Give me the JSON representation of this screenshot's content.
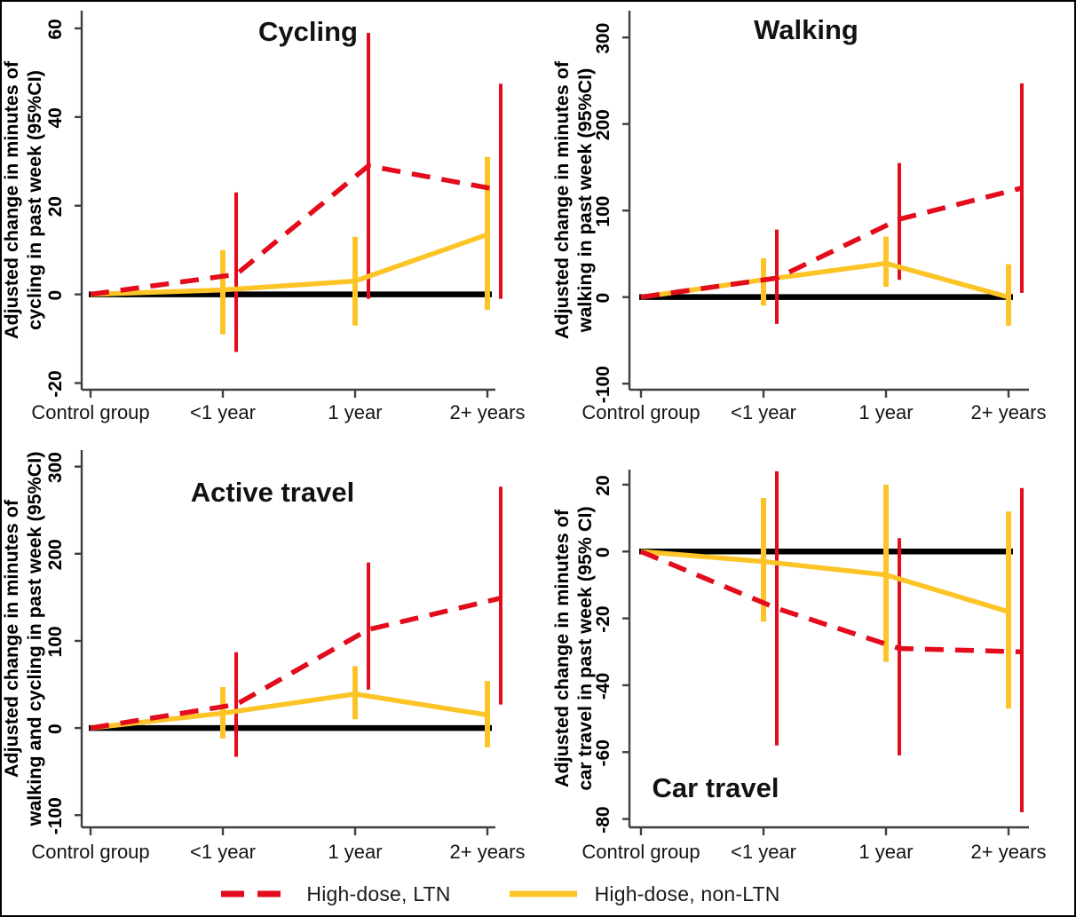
{
  "legend": {
    "items": [
      {
        "label": "High-dose, LTN",
        "color": "#e30b1c",
        "style": "dashed"
      },
      {
        "label": "High-dose, non-LTN",
        "color": "#fdc428",
        "style": "solid"
      }
    ]
  },
  "chart_data": [
    {
      "type": "line",
      "title": "Cycling",
      "ylabel": "Adjusted change in minutes of cycling in past week (95%CI)",
      "ylabel_lines": [
        "Adjusted change in minutes of",
        "cycling in past week (95%CI)"
      ],
      "categories": [
        "Control group",
        "<1 year",
        "1 year",
        "2+ years"
      ],
      "yticks": [
        -20,
        0,
        20,
        40,
        60
      ],
      "ylim": [
        -21.5,
        64
      ],
      "baseline": 0,
      "series": [
        {
          "name": "High-dose, LTN",
          "color": "#e30b1c",
          "dashed": true,
          "values": [
            0,
            4.5,
            29,
            23.5
          ],
          "ci_low": [
            null,
            -13,
            -1,
            -1
          ],
          "ci_high": [
            null,
            23,
            59,
            47.5
          ]
        },
        {
          "name": "High-dose, non-LTN",
          "color": "#fdc428",
          "dashed": false,
          "values": [
            0,
            1,
            3,
            13.5
          ],
          "ci_low": [
            null,
            -9,
            -7,
            -3.5
          ],
          "ci_high": [
            null,
            10,
            13,
            31
          ]
        }
      ]
    },
    {
      "type": "line",
      "title": "Walking",
      "ylabel": "Adjusted change in minutes of walking in past week (95%CI)",
      "ylabel_lines": [
        "Adjusted change in minutes of",
        "walking in past week (95%CI)"
      ],
      "categories": [
        "Control group",
        "<1 year",
        "1 year",
        "2+ years"
      ],
      "yticks": [
        -100,
        0,
        100,
        200,
        300
      ],
      "ylim": [
        -107,
        331
      ],
      "baseline": 0,
      "series": [
        {
          "name": "High-dose, LTN",
          "color": "#e30b1c",
          "dashed": true,
          "values": [
            0,
            22,
            90,
            126
          ],
          "ci_low": [
            null,
            -31,
            20,
            5
          ],
          "ci_high": [
            null,
            78,
            155,
            247
          ]
        },
        {
          "name": "High-dose, non-LTN",
          "color": "#fdc428",
          "dashed": false,
          "values": [
            0,
            20,
            39,
            0
          ],
          "ci_low": [
            null,
            -10,
            12,
            -33
          ],
          "ci_high": [
            null,
            45,
            70,
            38
          ]
        }
      ]
    },
    {
      "type": "line",
      "title": "Active travel",
      "ylabel": "Adjusted change in minutes of walking and cycling in past week (95%CI)",
      "ylabel_lines": [
        "Adjusted change in minutes of",
        "walking and cycling in past week (95%CI)"
      ],
      "categories": [
        "Control group",
        "<1 year",
        "1 year",
        "2+ years"
      ],
      "yticks": [
        -100,
        0,
        100,
        200,
        300
      ],
      "ylim": [
        -114,
        319
      ],
      "baseline": 0,
      "series": [
        {
          "name": "High-dose, LTN",
          "color": "#e30b1c",
          "dashed": true,
          "values": [
            0,
            27,
            113,
            149
          ],
          "ci_low": [
            null,
            -33,
            44,
            27
          ],
          "ci_high": [
            null,
            87,
            190,
            277
          ]
        },
        {
          "name": "High-dose, non-LTN",
          "color": "#fdc428",
          "dashed": false,
          "values": [
            0,
            17,
            39,
            15
          ],
          "ci_low": [
            null,
            -12,
            10,
            -22
          ],
          "ci_high": [
            null,
            47,
            71,
            54
          ]
        }
      ]
    },
    {
      "type": "line",
      "title": "Car travel",
      "ylabel": "Adjusted change in minutes of car travel in past week (95% CI)",
      "ylabel_lines": [
        "Adjusted change in minutes of",
        "car travel in past week (95% CI)"
      ],
      "categories": [
        "Control group",
        "<1 year",
        "1 year",
        "2+ years"
      ],
      "yticks": [
        20,
        0,
        -20,
        -40,
        -60,
        -80
      ],
      "ylim": [
        -82.5,
        24.5
      ],
      "baseline": 0,
      "series": [
        {
          "name": "High-dose, LTN",
          "color": "#e30b1c",
          "dashed": true,
          "values": [
            0,
            -17,
            -29,
            -30
          ],
          "ci_low": [
            null,
            -58,
            -61,
            -78
          ],
          "ci_high": [
            null,
            24,
            4,
            19
          ]
        },
        {
          "name": "High-dose, non-LTN",
          "color": "#fdc428",
          "dashed": false,
          "values": [
            0,
            -3,
            -7,
            -18
          ],
          "ci_low": [
            null,
            -21,
            -33,
            -47
          ],
          "ci_high": [
            null,
            16,
            20,
            12
          ]
        }
      ]
    }
  ]
}
